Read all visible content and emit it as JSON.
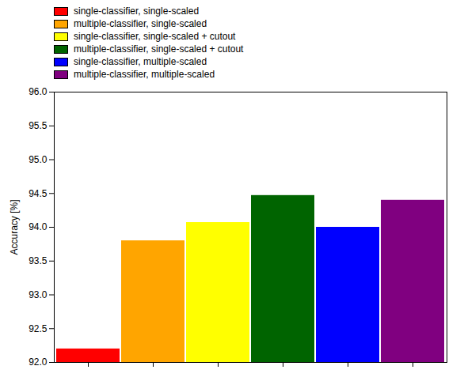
{
  "chart_data": {
    "type": "bar",
    "categories": [
      null,
      null,
      null,
      null,
      null,
      null
    ],
    "series": [
      {
        "name": "single-classifier, single-scaled",
        "color": "#ff0000",
        "values": [
          92.2,
          null,
          null,
          null,
          null,
          null
        ]
      },
      {
        "name": "multiple-classifier, single-scaled",
        "color": "#ffa500",
        "values": [
          null,
          93.8,
          null,
          null,
          null,
          null
        ]
      },
      {
        "name": "single-classifier, single-scaled + cutout",
        "color": "#ffff00",
        "values": [
          null,
          null,
          94.07,
          null,
          null,
          null
        ]
      },
      {
        "name": "multiple-classifier, single-scaled + cutout",
        "color": "#006400",
        "values": [
          null,
          null,
          null,
          94.47,
          null,
          null
        ]
      },
      {
        "name": "single-classifier, multiple-scaled",
        "color": "#0000ff",
        "values": [
          null,
          null,
          null,
          null,
          94.0,
          null
        ]
      },
      {
        "name": "multiple-classifier, multiple-scaled",
        "color": "#800080",
        "values": [
          null,
          null,
          null,
          null,
          null,
          94.4
        ]
      }
    ],
    "ylabel": "Accuracy [%]",
    "ylim": [
      92.0,
      96.0
    ],
    "yticks": [
      {
        "value": 92,
        "label": "92.0"
      },
      92.5,
      {
        "value": 93,
        "label": "93.0"
      },
      93.5,
      {
        "value": 94,
        "label": "94.0"
      },
      94.5,
      {
        "value": 95,
        "label": "95.0"
      },
      95.5,
      {
        "value": 96,
        "label": "96.0"
      }
    ],
    "legend": "upper left",
    "grid": false
  }
}
